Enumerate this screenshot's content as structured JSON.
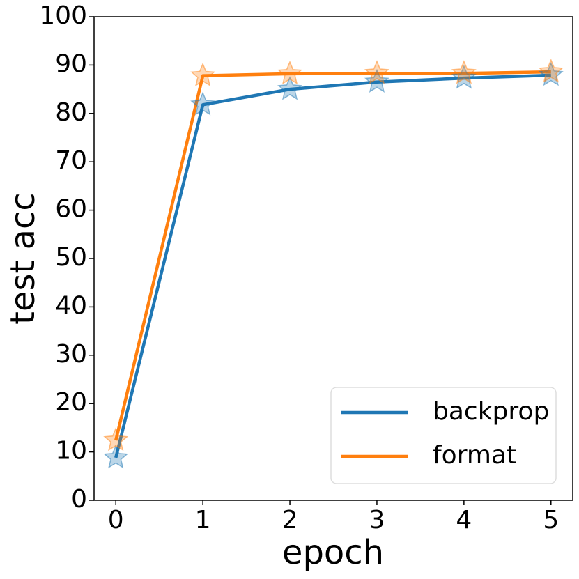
{
  "chart_data": {
    "type": "line",
    "x_label": "epoch",
    "y_label": "test acc",
    "x": [
      0,
      1,
      2,
      3,
      4,
      5
    ],
    "series": [
      {
        "name": "backprop",
        "color": "#1f77b4",
        "values": [
          8.8,
          81.8,
          85.0,
          86.5,
          87.3,
          87.9
        ]
      },
      {
        "name": "format",
        "color": "#ff7f0e",
        "values": [
          12.4,
          87.8,
          88.2,
          88.3,
          88.3,
          88.6
        ]
      }
    ],
    "xlim": [
      -0.25,
      5.25
    ],
    "ylim": [
      0,
      100
    ],
    "xticks": [
      0,
      1,
      2,
      3,
      4,
      5
    ],
    "yticks": [
      0,
      10,
      20,
      30,
      40,
      50,
      60,
      70,
      80,
      90,
      100
    ],
    "grid": false,
    "legend": "lower right",
    "marker": "star"
  }
}
